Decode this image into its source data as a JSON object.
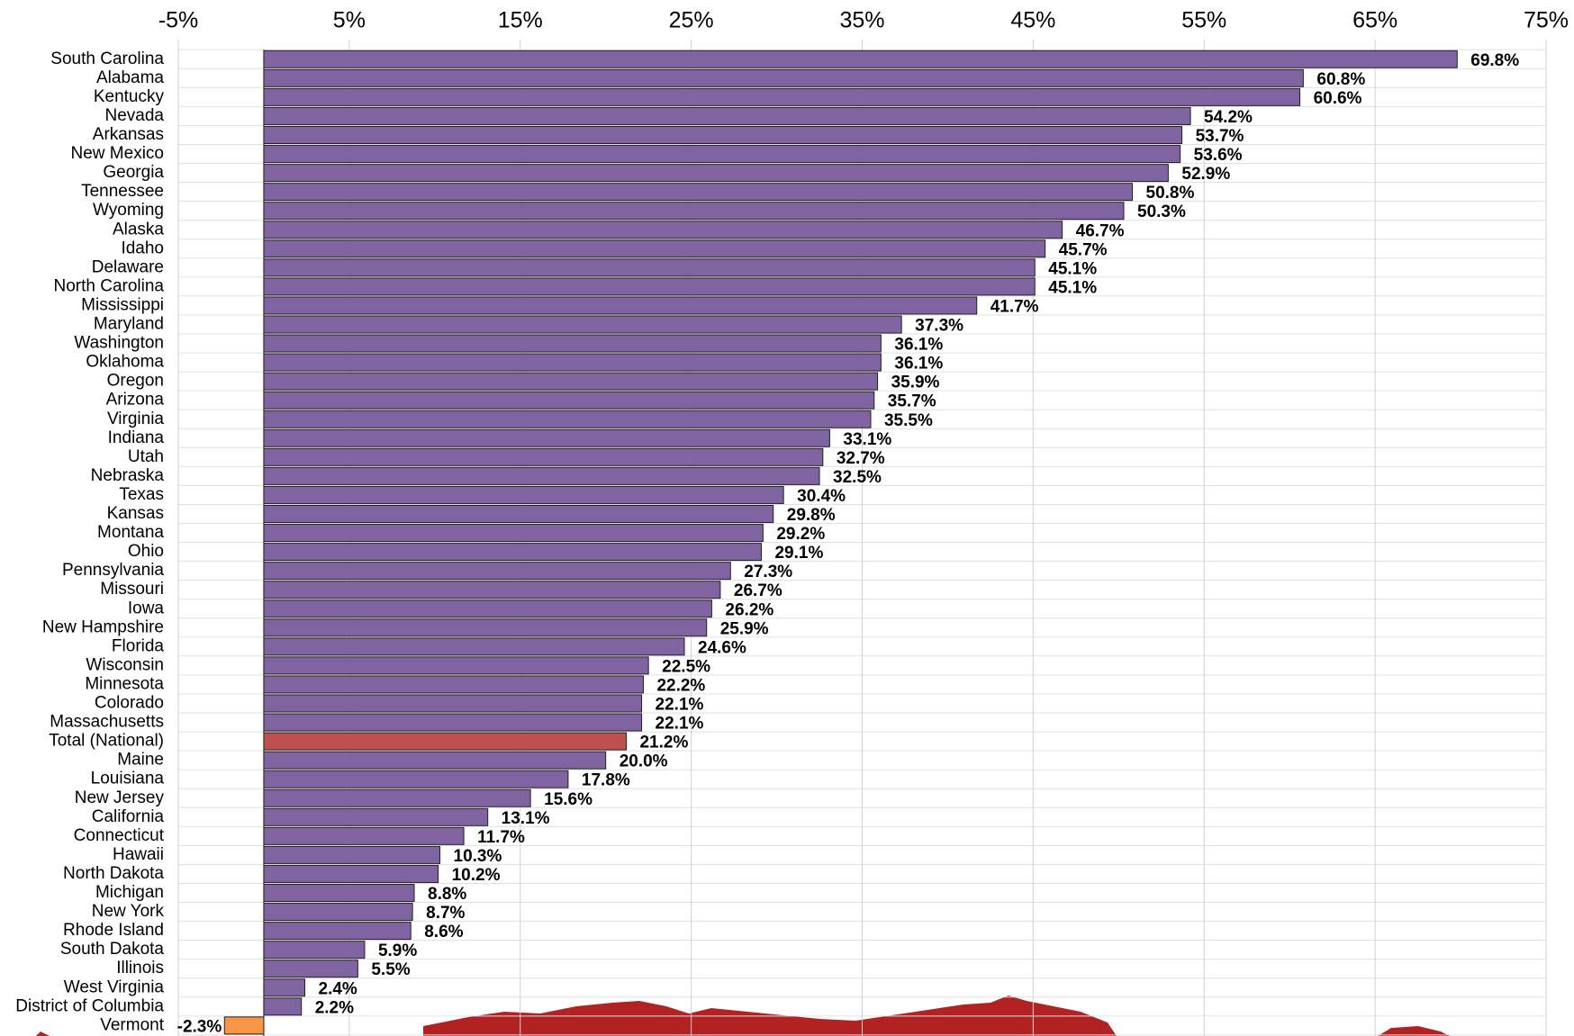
{
  "chart_data": {
    "type": "barh",
    "categories": [
      "South Carolina",
      "Alabama",
      "Kentucky",
      "Nevada",
      "Arkansas",
      "New Mexico",
      "Georgia",
      "Tennessee",
      "Wyoming",
      "Alaska",
      "Idaho",
      "Delaware",
      "North Carolina",
      "Mississippi",
      "Maryland",
      "Washington",
      "Oklahoma",
      "Oregon",
      "Arizona",
      "Virginia",
      "Indiana",
      "Utah",
      "Nebraska",
      "Texas",
      "Kansas",
      "Montana",
      "Ohio",
      "Pennsylvania",
      "Missouri",
      "Iowa",
      "New Hampshire",
      "Florida",
      "Wisconsin",
      "Minnesota",
      "Colorado",
      "Massachusetts",
      "Total (National)",
      "Maine",
      "Louisiana",
      "New Jersey",
      "California",
      "Connecticut",
      "Hawaii",
      "North Dakota",
      "Michigan",
      "New York",
      "Rhode Island",
      "South Dakota",
      "Illinois",
      "West Virginia",
      "District of Columbia",
      "Vermont"
    ],
    "values": [
      69.8,
      60.8,
      60.6,
      54.2,
      53.7,
      53.6,
      52.9,
      50.8,
      50.3,
      46.7,
      45.7,
      45.1,
      45.1,
      41.7,
      37.3,
      36.1,
      36.1,
      35.9,
      35.7,
      35.5,
      33.1,
      32.7,
      32.5,
      30.4,
      29.8,
      29.2,
      29.1,
      27.3,
      26.7,
      26.2,
      25.9,
      24.6,
      22.5,
      22.2,
      22.1,
      22.1,
      21.2,
      20.0,
      17.8,
      15.6,
      13.1,
      11.7,
      10.3,
      10.2,
      8.8,
      8.7,
      8.6,
      5.9,
      5.5,
      2.4,
      2.2,
      -2.3
    ],
    "value_labels": [
      "69.8%",
      "60.8%",
      "60.6%",
      "54.2%",
      "53.7%",
      "53.6%",
      "52.9%",
      "50.8%",
      "50.3%",
      "46.7%",
      "45.7%",
      "45.1%",
      "45.1%",
      "41.7%",
      "37.3%",
      "36.1%",
      "36.1%",
      "35.9%",
      "35.7%",
      "35.5%",
      "33.1%",
      "32.7%",
      "32.5%",
      "30.4%",
      "29.8%",
      "29.2%",
      "29.1%",
      "27.3%",
      "26.7%",
      "26.2%",
      "25.9%",
      "24.6%",
      "22.5%",
      "22.2%",
      "22.1%",
      "22.1%",
      "21.2%",
      "20.0%",
      "17.8%",
      "15.6%",
      "13.1%",
      "11.7%",
      "10.3%",
      "10.2%",
      "8.8%",
      "8.7%",
      "8.6%",
      "5.9%",
      "5.5%",
      "2.4%",
      "2.2%",
      "-2.3%"
    ],
    "colors": [
      "#8064a2",
      "#8064a2",
      "#8064a2",
      "#8064a2",
      "#8064a2",
      "#8064a2",
      "#8064a2",
      "#8064a2",
      "#8064a2",
      "#8064a2",
      "#8064a2",
      "#8064a2",
      "#8064a2",
      "#8064a2",
      "#8064a2",
      "#8064a2",
      "#8064a2",
      "#8064a2",
      "#8064a2",
      "#8064a2",
      "#8064a2",
      "#8064a2",
      "#8064a2",
      "#8064a2",
      "#8064a2",
      "#8064a2",
      "#8064a2",
      "#8064a2",
      "#8064a2",
      "#8064a2",
      "#8064a2",
      "#8064a2",
      "#8064a2",
      "#8064a2",
      "#8064a2",
      "#8064a2",
      "#c0504d",
      "#8064a2",
      "#8064a2",
      "#8064a2",
      "#8064a2",
      "#8064a2",
      "#8064a2",
      "#8064a2",
      "#8064a2",
      "#8064a2",
      "#8064a2",
      "#8064a2",
      "#8064a2",
      "#8064a2",
      "#8064a2",
      "#f79646"
    ],
    "xlim": [
      -5,
      75
    ],
    "xticks": [
      {
        "value": -5,
        "label": "-5%"
      },
      {
        "value": 5,
        "label": "5%"
      },
      {
        "value": 15,
        "label": "15%"
      },
      {
        "value": 25,
        "label": "25%"
      },
      {
        "value": 35,
        "label": "35%"
      },
      {
        "value": 45,
        "label": "45%"
      },
      {
        "value": 55,
        "label": "55%"
      },
      {
        "value": 65,
        "label": "65%"
      },
      {
        "value": 75,
        "label": "75%"
      }
    ],
    "grid": true
  }
}
